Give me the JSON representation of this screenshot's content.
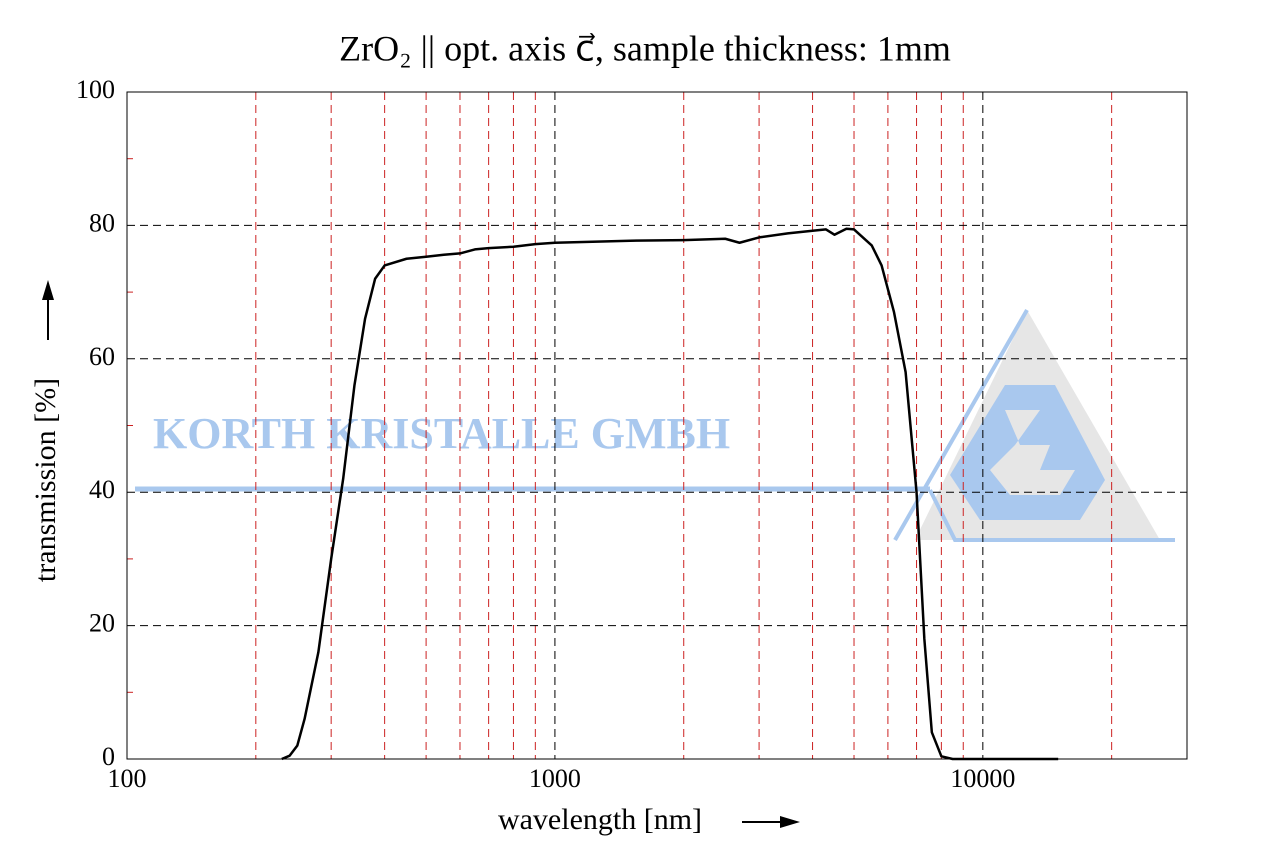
{
  "chart_data": {
    "type": "line",
    "title": "ZrO₂ || opt. axis c⃗, sample thickness: 1mm",
    "xlabel": "wavelength [nm]",
    "ylabel": "transmission [%]",
    "watermark": "KORTH KRISTALLE GMBH",
    "xscale": "log",
    "xlim": [
      100,
      30000
    ],
    "ylim": [
      0,
      100
    ],
    "xticks": [
      100,
      1000,
      10000
    ],
    "yticks": [
      0,
      20,
      40,
      60,
      80,
      100
    ],
    "xminor_grid": [
      200,
      300,
      400,
      500,
      600,
      700,
      800,
      900,
      2000,
      3000,
      4000,
      5000,
      6000,
      7000,
      8000,
      9000,
      20000
    ],
    "yminor": [
      10,
      30,
      50,
      70,
      90
    ],
    "grid": true,
    "series": [
      {
        "color": "#000000",
        "x": [
          230,
          240,
          250,
          260,
          280,
          300,
          320,
          340,
          360,
          380,
          400,
          450,
          500,
          550,
          600,
          650,
          700,
          800,
          900,
          1000,
          1500,
          2000,
          2500,
          2700,
          3000,
          3500,
          4000,
          4300,
          4500,
          4800,
          5000,
          5500,
          5800,
          6200,
          6600,
          7000,
          7300,
          7600,
          8000,
          8500,
          10000,
          15000
        ],
        "values": [
          0,
          0.5,
          2,
          6,
          16,
          30,
          42,
          56,
          66,
          72,
          74,
          75,
          75.3,
          75.6,
          75.8,
          76.4,
          76.6,
          76.8,
          77.2,
          77.4,
          77.7,
          77.8,
          78,
          77.4,
          78.2,
          78.8,
          79.2,
          79.4,
          78.6,
          79.5,
          79.4,
          77,
          74,
          67,
          58,
          40,
          18,
          4,
          0.4,
          0,
          0,
          0
        ]
      }
    ]
  }
}
